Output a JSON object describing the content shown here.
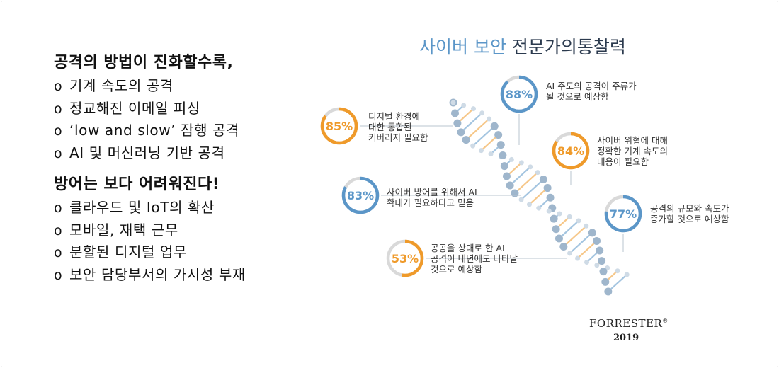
{
  "left_panel": {
    "heading1": "공격의 방법이 진화할수록,",
    "bullets1": [
      "기계 속도의 공격",
      "정교해진 이메일 피싱",
      "‘low and slow’ 잠행 공격",
      "AI 및 머신러닝 기반 공격"
    ],
    "heading2": "방어는 보다 어려워진다!",
    "bullets2": [
      "클라우드 및 IoT의 확산",
      "모바일, 재택 근무",
      "분할된 디지털 업무",
      "보안 담당부서의 가시성 부재"
    ],
    "bullet_symbol": "o"
  },
  "title": {
    "part1": "사이버 보안",
    "part2": "전문가의통찰력"
  },
  "stats": [
    {
      "value": 88,
      "label": "88%",
      "color": "#5b96c8",
      "lines": [
        "AI 주도의 공격이 주류가",
        "될 것으로 예상함"
      ]
    },
    {
      "value": 85,
      "label": "85%",
      "color": "#ef9a2a",
      "lines": [
        "디지털 환경에",
        "대한 통합된",
        "커버리지 필요함"
      ]
    },
    {
      "value": 84,
      "label": "84%",
      "color": "#ef9a2a",
      "lines": [
        "사이버 위협에 대해",
        "정확한 기계 속도의",
        "대응이 필요함"
      ]
    },
    {
      "value": 83,
      "label": "83%",
      "color": "#5b96c8",
      "lines": [
        "사이버 방어를 위해서 AI",
        "확대가 필요하다고 믿음"
      ]
    },
    {
      "value": 77,
      "label": "77%",
      "color": "#5b96c8",
      "lines": [
        "공격의 규모와 속도가",
        "증가할 것으로 예상함"
      ]
    },
    {
      "value": 53,
      "label": "53%",
      "color": "#ef9a2a",
      "lines": [
        "공공을 상대로 한 AI",
        "공격이 내년에도 나타날",
        "것으로 예상함"
      ]
    }
  ],
  "colors": {
    "blue": "#5b96c8",
    "orange": "#ef9a2a",
    "track": "#d9d9d9"
  },
  "brand": {
    "name": "FORRESTER",
    "mark": "®",
    "year": "2019"
  }
}
